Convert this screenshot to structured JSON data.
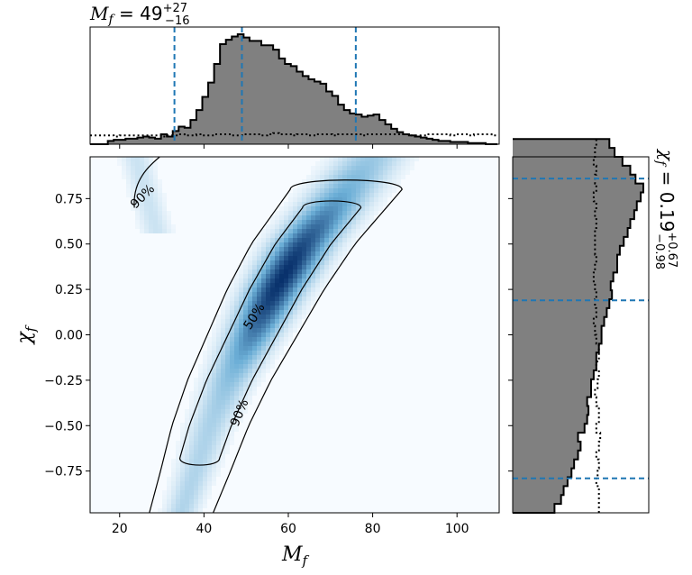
{
  "chart_data": [
    {
      "type": "heatmap",
      "panel": "joint",
      "xlabel_symbol": "M",
      "xlabel_sub": "f",
      "ylabel_symbol": "χ",
      "ylabel_sub": "f",
      "xlim": [
        13,
        110
      ],
      "ylim": [
        -0.98,
        0.98
      ],
      "xticks": [
        20,
        40,
        60,
        80,
        100
      ],
      "yticks": [
        -0.75,
        -0.5,
        -0.25,
        0.0,
        0.25,
        0.5,
        0.75
      ],
      "xtick_labels": [
        "20",
        "40",
        "60",
        "80",
        "100"
      ],
      "ytick_labels": [
        "−0.75",
        "−0.50",
        "−0.25",
        "0.00",
        "0.25",
        "0.50",
        "0.75"
      ],
      "colormap": "Blues",
      "density_ridge": {
        "y": [
          -0.92,
          -0.75,
          -0.5,
          -0.25,
          0.0,
          0.25,
          0.5,
          0.75
        ],
        "x": [
          35.5,
          38.0,
          41.5,
          46.0,
          51.5,
          57.0,
          63.5,
          72.0
        ]
      },
      "contours": [
        {
          "label": "50%",
          "label_pos": [
            52,
            0.1
          ],
          "label_angle": -58
        },
        {
          "label": "90%",
          "label_pos": [
            48.5,
            -0.43
          ],
          "label_angle": -68
        },
        {
          "label": "90%",
          "label_pos": [
            25.5,
            0.76
          ],
          "label_angle": -45
        }
      ]
    },
    {
      "type": "bar",
      "panel": "top-marginal",
      "variable": "M_f",
      "xlim": [
        13,
        110
      ],
      "bin_start": 13,
      "bin_width": 1.4,
      "values": [
        0.0,
        0.0,
        0.0,
        0.03,
        0.04,
        0.04,
        0.05,
        0.05,
        0.06,
        0.07,
        0.06,
        0.05,
        0.09,
        0.07,
        0.12,
        0.16,
        0.15,
        0.22,
        0.31,
        0.43,
        0.56,
        0.73,
        0.91,
        0.95,
        0.98,
        1.0,
        0.97,
        0.94,
        0.94,
        0.9,
        0.9,
        0.86,
        0.78,
        0.73,
        0.71,
        0.66,
        0.62,
        0.59,
        0.57,
        0.55,
        0.48,
        0.44,
        0.36,
        0.31,
        0.28,
        0.27,
        0.25,
        0.26,
        0.27,
        0.22,
        0.18,
        0.14,
        0.11,
        0.09,
        0.08,
        0.07,
        0.06,
        0.05,
        0.04,
        0.03,
        0.03,
        0.02,
        0.02,
        0.02,
        0.01,
        0.01,
        0.01,
        0.0,
        0.0
      ],
      "prior_values": [
        0.08,
        0.08,
        0.08,
        0.08,
        0.07,
        0.08,
        0.08,
        0.08,
        0.08,
        0.08,
        0.08,
        0.08,
        0.07,
        0.08,
        0.08,
        0.09,
        0.08,
        0.08,
        0.09,
        0.08,
        0.08,
        0.09,
        0.09,
        0.09,
        0.08,
        0.08,
        0.09,
        0.09,
        0.09,
        0.08,
        0.09,
        0.1,
        0.09,
        0.09,
        0.08,
        0.09,
        0.09,
        0.08,
        0.09,
        0.09,
        0.09,
        0.08,
        0.09,
        0.09,
        0.09,
        0.09,
        0.08,
        0.09,
        0.09,
        0.09,
        0.09,
        0.09,
        0.09,
        0.09,
        0.08,
        0.08,
        0.08,
        0.09,
        0.09,
        0.09,
        0.09,
        0.08,
        0.09,
        0.09,
        0.08,
        0.09,
        0.09,
        0.09,
        0.08
      ],
      "quantile_lines": [
        33.0,
        49.0,
        76.0
      ],
      "title_value": "49",
      "title_upper": "+27",
      "title_lower": "−16"
    },
    {
      "type": "bar",
      "panel": "right-marginal",
      "orientation": "horizontal",
      "variable": "chi_f",
      "ylim": [
        -0.98,
        0.98
      ],
      "bin_start": -0.98,
      "bin_width": 0.049,
      "values": [
        0.32,
        0.37,
        0.39,
        0.42,
        0.45,
        0.47,
        0.5,
        0.52,
        0.5,
        0.55,
        0.57,
        0.58,
        0.57,
        0.6,
        0.6,
        0.62,
        0.64,
        0.64,
        0.66,
        0.68,
        0.68,
        0.7,
        0.72,
        0.74,
        0.76,
        0.75,
        0.77,
        0.8,
        0.8,
        0.82,
        0.85,
        0.88,
        0.9,
        0.93,
        0.95,
        0.98,
        1.0,
        0.94,
        0.9,
        0.84,
        0.78,
        0.74
      ],
      "prior_values": [
        0.66,
        0.66,
        0.66,
        0.64,
        0.65,
        0.66,
        0.64,
        0.66,
        0.67,
        0.64,
        0.66,
        0.66,
        0.64,
        0.63,
        0.65,
        0.66,
        0.64,
        0.66,
        0.66,
        0.64,
        0.63,
        0.62,
        0.64,
        0.63,
        0.64,
        0.63,
        0.62,
        0.63,
        0.64,
        0.63,
        0.63,
        0.63,
        0.64,
        0.63,
        0.64,
        0.62,
        0.64,
        0.63,
        0.64,
        0.62,
        0.63,
        0.64
      ],
      "quantile_lines": [
        -0.79,
        0.19,
        0.86
      ],
      "title_value": "0.19",
      "title_upper": "+0.67",
      "title_lower": "−0.98"
    }
  ],
  "colors": {
    "histogram_fill": "#808080",
    "histogram_edge": "#000000",
    "quantile_line": "#1f77b4",
    "contour": "#000000",
    "density_low": "#f7fbff",
    "density_high": "#08306b"
  }
}
